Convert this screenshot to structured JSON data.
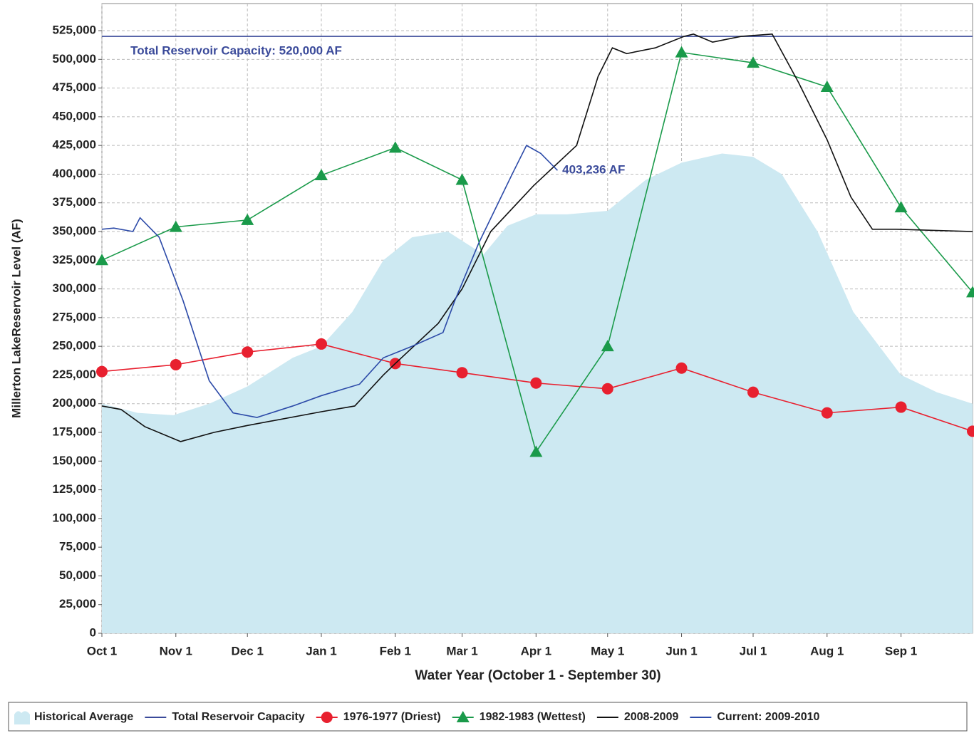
{
  "chart_data": {
    "type": "line",
    "xlabel": "Water Year (October 1 - September 30)",
    "ylabel": "Millerton LakeReservoir Level (AF)",
    "xlim": [
      0,
      365
    ],
    "ylim": [
      0,
      548600
    ],
    "grid": true,
    "legend": "bottom",
    "xticks": [
      {
        "value": 0,
        "label": "Oct 1"
      },
      {
        "value": 31,
        "label": "Nov 1"
      },
      {
        "value": 61,
        "label": "Dec 1"
      },
      {
        "value": 92,
        "label": "Jan 1"
      },
      {
        "value": 123,
        "label": "Feb 1"
      },
      {
        "value": 151,
        "label": "Mar 1"
      },
      {
        "value": 182,
        "label": "Apr 1"
      },
      {
        "value": 212,
        "label": "May 1"
      },
      {
        "value": 243,
        "label": "Jun 1"
      },
      {
        "value": 273,
        "label": "Jul 1"
      },
      {
        "value": 304,
        "label": "Aug 1"
      },
      {
        "value": 335,
        "label": "Sep 1"
      }
    ],
    "yticks": [
      0,
      {
        "value": 25000,
        "label": "25,000"
      },
      {
        "value": 50000,
        "label": "50,000"
      },
      {
        "value": 75000,
        "label": "75,000"
      },
      {
        "value": 100000,
        "label": "100,000"
      },
      {
        "value": 125000,
        "label": "125,000"
      },
      {
        "value": 150000,
        "label": "150,000"
      },
      {
        "value": 175000,
        "label": "175,000"
      },
      {
        "value": 200000,
        "label": "200,000"
      },
      {
        "value": 225000,
        "label": "225,000"
      },
      {
        "value": 250000,
        "label": "250,000"
      },
      {
        "value": 275000,
        "label": "275,000"
      },
      {
        "value": 300000,
        "label": "300,000"
      },
      {
        "value": 325000,
        "label": "325,000"
      },
      {
        "value": 350000,
        "label": "350,000"
      },
      {
        "value": 375000,
        "label": "375,000"
      },
      {
        "value": 400000,
        "label": "400,000"
      },
      {
        "value": 425000,
        "label": "425,000"
      },
      {
        "value": 450000,
        "label": "450,000"
      },
      {
        "value": 475000,
        "label": "475,000"
      },
      {
        "value": 500000,
        "label": "500,000"
      },
      {
        "value": 525000,
        "label": "525,000"
      }
    ],
    "annotations": [
      {
        "text": "Total Reservoir Capacity: 520,000 AF",
        "x": 12,
        "y": 507000,
        "color": "#3a4a9a"
      },
      {
        "text": "403,236 AF",
        "x": 193,
        "y": 403236,
        "color": "#3a4a9a"
      }
    ],
    "series": [
      {
        "name": "Historical Average",
        "style": "area",
        "color": "#cde9f2",
        "x": [
          0,
          15,
          30,
          45,
          61,
          80,
          92,
          105,
          118,
          130,
          145,
          160,
          170,
          182,
          195,
          212,
          228,
          243,
          260,
          273,
          285,
          300,
          315,
          335,
          350,
          365
        ],
        "values": [
          200000,
          192000,
          190000,
          200000,
          215000,
          240000,
          250000,
          280000,
          325000,
          345000,
          350000,
          330000,
          355000,
          365000,
          365000,
          368000,
          395000,
          410000,
          418000,
          415000,
          400000,
          350000,
          280000,
          225000,
          210000,
          200000
        ]
      },
      {
        "name": "Total Reservoir Capacity",
        "style": "line",
        "color": "#3a4a9a",
        "x": [
          0,
          365
        ],
        "values": [
          520000,
          520000
        ]
      },
      {
        "name": "1976-1977 (Driest)",
        "style": "line",
        "marker": "circle",
        "color": "#e8202f",
        "x": [
          0,
          31,
          61,
          92,
          123,
          151,
          182,
          212,
          243,
          273,
          304,
          335,
          365
        ],
        "values": [
          228000,
          234000,
          245000,
          252000,
          235000,
          227000,
          218000,
          213000,
          231000,
          210000,
          192000,
          197000,
          176000
        ]
      },
      {
        "name": "1982-1983 (Wettest)",
        "style": "line",
        "marker": "triangle",
        "color": "#1a9a4a",
        "x": [
          0,
          31,
          61,
          92,
          123,
          151,
          182,
          212,
          243,
          273,
          304,
          335,
          365
        ],
        "values": [
          325000,
          354000,
          360000,
          399000,
          423000,
          395000,
          158000,
          250000,
          506000,
          497000,
          476000,
          371000,
          297000
        ]
      },
      {
        "name": "2008-2009",
        "style": "line",
        "color": "#111111",
        "x": [
          0,
          8,
          18,
          33,
          47,
          61,
          92,
          106,
          118,
          123,
          141,
          151,
          163,
          181,
          199,
          208,
          214,
          220,
          232,
          244,
          248,
          256,
          268,
          281,
          292,
          304,
          314,
          323,
          333,
          365
        ],
        "values": [
          198000,
          195000,
          180000,
          167000,
          175000,
          181000,
          193000,
          198000,
          225000,
          235000,
          270000,
          300000,
          350000,
          390000,
          425000,
          485000,
          510000,
          505000,
          510000,
          520000,
          522000,
          515000,
          520000,
          522000,
          480000,
          430000,
          380000,
          352000,
          352000,
          350000
        ]
      },
      {
        "name": "Current: 2009-2010",
        "style": "line",
        "color": "#2c4aa8",
        "x": [
          0,
          5,
          13,
          16,
          24,
          34,
          45,
          55,
          65,
          80,
          92,
          108,
          118,
          130,
          143,
          148,
          158,
          172,
          178,
          184,
          191
        ],
        "values": [
          352000,
          353000,
          350000,
          362000,
          345000,
          290000,
          220000,
          192000,
          188000,
          198000,
          207000,
          217000,
          240000,
          250000,
          262000,
          290000,
          340000,
          400000,
          425000,
          418000,
          403236
        ]
      }
    ]
  }
}
